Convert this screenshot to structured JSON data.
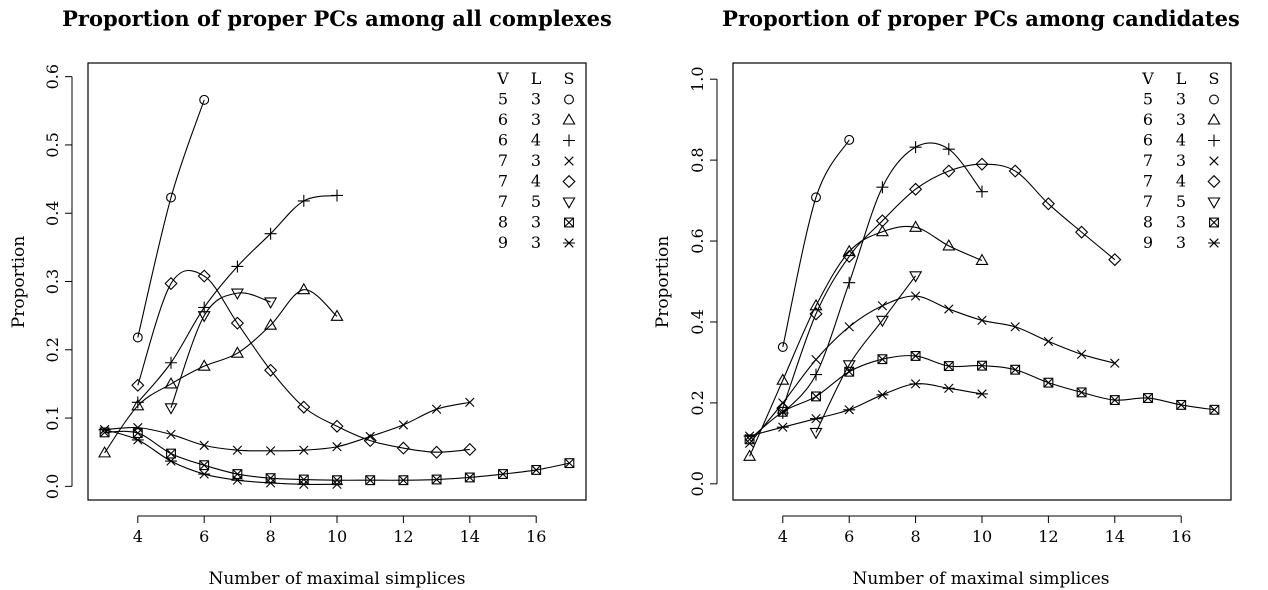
{
  "chart_data": [
    {
      "type": "line",
      "title": "Proportion of proper PCs among all complexes",
      "xlabel": "Number of maximal simplices",
      "ylabel": "Proportion",
      "xlim": [
        2.5,
        17.5
      ],
      "ylim": [
        -0.02,
        0.62
      ],
      "xticks": [
        "4",
        "6",
        "8",
        "10",
        "12",
        "14",
        "16"
      ],
      "yticks": [
        "0.0",
        "0.1",
        "0.2",
        "0.3",
        "0.4",
        "0.5",
        "0.6"
      ],
      "legend": {
        "position": "top-right",
        "headers": [
          "V",
          "L",
          "S"
        ],
        "rows": [
          [
            "5",
            "3"
          ],
          [
            "6",
            "3"
          ],
          [
            "6",
            "4"
          ],
          [
            "7",
            "3"
          ],
          [
            "7",
            "4"
          ],
          [
            "7",
            "5"
          ],
          [
            "8",
            "3"
          ],
          [
            "9",
            "3"
          ]
        ]
      },
      "series": [
        {
          "V": "5",
          "L": "3",
          "symbol": "circle",
          "x": [
            4,
            5,
            6
          ],
          "y": [
            0.218,
            0.423,
            0.566
          ]
        },
        {
          "V": "6",
          "L": "3",
          "symbol": "triangle",
          "x": [
            3,
            4,
            5,
            6,
            7,
            8,
            9,
            10
          ],
          "y": [
            0.049,
            0.118,
            0.15,
            0.176,
            0.195,
            0.236,
            0.288,
            0.249
          ]
        },
        {
          "V": "6",
          "L": "4",
          "symbol": "plus",
          "x": [
            4,
            5,
            6,
            7,
            8,
            9,
            10
          ],
          "y": [
            0.123,
            0.181,
            0.262,
            0.322,
            0.37,
            0.418,
            0.426
          ]
        },
        {
          "V": "7",
          "L": "3",
          "symbol": "cross",
          "x": [
            3,
            4,
            5,
            6,
            7,
            8,
            9,
            10,
            11,
            12,
            13,
            14
          ],
          "y": [
            0.083,
            0.086,
            0.076,
            0.06,
            0.053,
            0.052,
            0.053,
            0.058,
            0.073,
            0.09,
            0.113,
            0.123
          ]
        },
        {
          "V": "7",
          "L": "4",
          "symbol": "diamond",
          "x": [
            4,
            5,
            6,
            7,
            8,
            9,
            10,
            11,
            12,
            13,
            14
          ],
          "y": [
            0.148,
            0.297,
            0.308,
            0.239,
            0.17,
            0.116,
            0.088,
            0.067,
            0.056,
            0.05,
            0.054
          ]
        },
        {
          "V": "7",
          "L": "5",
          "symbol": "down-triangle",
          "x": [
            5,
            6,
            7,
            8
          ],
          "y": [
            0.115,
            0.25,
            0.283,
            0.27
          ]
        },
        {
          "V": "8",
          "L": "3",
          "symbol": "boxed-cross",
          "x": [
            3,
            4,
            5,
            6,
            7,
            8,
            9,
            10,
            11,
            12,
            13,
            14,
            15,
            16,
            17
          ],
          "y": [
            0.079,
            0.078,
            0.048,
            0.031,
            0.018,
            0.012,
            0.01,
            0.009,
            0.009,
            0.009,
            0.01,
            0.013,
            0.018,
            0.024,
            0.034
          ]
        },
        {
          "V": "9",
          "L": "3",
          "symbol": "asterisk",
          "x": [
            3,
            4,
            5,
            6,
            7,
            8,
            9,
            10
          ],
          "y": [
            0.083,
            0.068,
            0.037,
            0.018,
            0.009,
            0.005,
            0.003,
            0.003
          ]
        }
      ]
    },
    {
      "type": "line",
      "title": "Proportion of proper PCs among candidates",
      "xlabel": "Number of maximal simplices",
      "ylabel": "Proportion",
      "xlim": [
        2.5,
        17.5
      ],
      "ylim": [
        -0.04,
        1.04
      ],
      "xticks": [
        "4",
        "6",
        "8",
        "10",
        "12",
        "14",
        "16"
      ],
      "yticks": [
        "0.0",
        "0.2",
        "0.4",
        "0.6",
        "0.8",
        "1.0"
      ],
      "legend": {
        "position": "top-right",
        "headers": [
          "V",
          "L",
          "S"
        ],
        "rows": [
          [
            "5",
            "3"
          ],
          [
            "6",
            "3"
          ],
          [
            "6",
            "4"
          ],
          [
            "7",
            "3"
          ],
          [
            "7",
            "4"
          ],
          [
            "7",
            "5"
          ],
          [
            "8",
            "3"
          ],
          [
            "9",
            "3"
          ]
        ]
      },
      "series": [
        {
          "V": "5",
          "L": "3",
          "symbol": "circle",
          "x": [
            4,
            5,
            6
          ],
          "y": [
            0.338,
            0.708,
            0.85
          ]
        },
        {
          "V": "6",
          "L": "3",
          "symbol": "triangle",
          "x": [
            3,
            4,
            5,
            6,
            7,
            8,
            9,
            10
          ],
          "y": [
            0.068,
            0.256,
            0.44,
            0.574,
            0.623,
            0.634,
            0.588,
            0.552
          ]
        },
        {
          "V": "6",
          "L": "4",
          "symbol": "plus",
          "x": [
            4,
            5,
            6,
            7,
            8,
            9,
            10
          ],
          "y": [
            0.175,
            0.27,
            0.497,
            0.733,
            0.832,
            0.827,
            0.722
          ]
        },
        {
          "V": "7",
          "L": "3",
          "symbol": "cross",
          "x": [
            3,
            4,
            5,
            6,
            7,
            8,
            9,
            10,
            11,
            12,
            13,
            14
          ],
          "y": [
            0.1,
            0.2,
            0.307,
            0.388,
            0.44,
            0.464,
            0.432,
            0.404,
            0.388,
            0.352,
            0.32,
            0.298
          ]
        },
        {
          "V": "7",
          "L": "4",
          "symbol": "diamond",
          "x": [
            4,
            5,
            6,
            7,
            8,
            9,
            10,
            11,
            12,
            13,
            14
          ],
          "y": [
            0.187,
            0.42,
            0.562,
            0.65,
            0.728,
            0.773,
            0.79,
            0.773,
            0.692,
            0.622,
            0.554
          ]
        },
        {
          "V": "7",
          "L": "5",
          "symbol": "down-triangle",
          "x": [
            5,
            6,
            7,
            8
          ],
          "y": [
            0.127,
            0.294,
            0.404,
            0.514
          ]
        },
        {
          "V": "8",
          "L": "3",
          "symbol": "boxed-cross",
          "x": [
            3,
            4,
            5,
            6,
            7,
            8,
            9,
            10,
            11,
            12,
            13,
            14,
            15,
            16,
            17
          ],
          "y": [
            0.11,
            0.178,
            0.216,
            0.277,
            0.308,
            0.316,
            0.291,
            0.292,
            0.282,
            0.25,
            0.226,
            0.207,
            0.212,
            0.195,
            0.183
          ]
        },
        {
          "V": "9",
          "L": "3",
          "symbol": "asterisk",
          "x": [
            3,
            4,
            5,
            6,
            7,
            8,
            9,
            10
          ],
          "y": [
            0.118,
            0.14,
            0.161,
            0.183,
            0.22,
            0.247,
            0.236,
            0.222
          ]
        }
      ]
    }
  ]
}
